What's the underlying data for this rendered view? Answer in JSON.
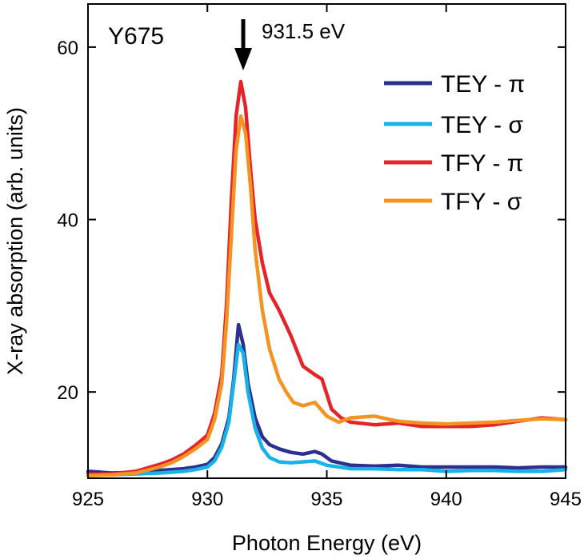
{
  "chart_data": {
    "type": "line",
    "xlabel": "Photon Energy (eV)",
    "ylabel": "X-ray absorption (arb. units)",
    "xlim": [
      925,
      945
    ],
    "ylim": [
      10,
      65
    ],
    "xticks": [
      925,
      930,
      935,
      940,
      945
    ],
    "yticks": [
      20,
      40,
      60
    ],
    "sample_label": "Y675",
    "annotation": {
      "text": "931.5 eV",
      "x": 931.5
    },
    "legend_position": "top-right",
    "series": [
      {
        "name": "TEY - π",
        "color": "#2b2f8f",
        "x": [
          925,
          926,
          927,
          928,
          929,
          929.5,
          930,
          930.3,
          930.6,
          930.9,
          931.1,
          931.3,
          931.5,
          931.7,
          932.0,
          932.3,
          932.6,
          933.0,
          933.5,
          934.0,
          934.5,
          934.8,
          935.2,
          936,
          937,
          938,
          939,
          940,
          941,
          942,
          943,
          944,
          945
        ],
        "y": [
          10.8,
          10.6,
          10.7,
          10.9,
          11.1,
          11.3,
          11.6,
          12.4,
          14.0,
          17.0,
          21.5,
          27.8,
          25.5,
          21.0,
          17.0,
          14.8,
          13.9,
          13.4,
          13.0,
          12.8,
          13.1,
          12.8,
          12.0,
          11.5,
          11.4,
          11.5,
          11.3,
          11.3,
          11.3,
          11.3,
          11.2,
          11.3,
          11.3
        ]
      },
      {
        "name": "TEY - σ",
        "color": "#17b2e8",
        "x": [
          925,
          926,
          927,
          928,
          929,
          929.5,
          930,
          930.3,
          930.6,
          930.9,
          931.1,
          931.3,
          931.5,
          931.7,
          932.0,
          932.3,
          932.6,
          933.0,
          933.5,
          934.0,
          934.5,
          935,
          936,
          937,
          938,
          939,
          940,
          941,
          942,
          943,
          944,
          945
        ],
        "y": [
          10.5,
          10.4,
          10.5,
          10.6,
          10.8,
          11.0,
          11.3,
          12.0,
          13.6,
          16.5,
          21.0,
          25.5,
          24.5,
          20.0,
          15.8,
          13.5,
          12.4,
          11.9,
          11.8,
          11.9,
          12.0,
          11.5,
          11.1,
          11.1,
          11.0,
          11.0,
          10.8,
          10.9,
          10.9,
          10.8,
          10.8,
          11.0
        ]
      },
      {
        "name": "TFY - π",
        "color": "#e5242a",
        "x": [
          925,
          926,
          927,
          928,
          928.5,
          929,
          929.5,
          930,
          930.3,
          930.6,
          930.8,
          931.0,
          931.2,
          931.4,
          931.6,
          931.8,
          932.0,
          932.3,
          932.6,
          933.0,
          933.5,
          934.0,
          934.5,
          934.8,
          935.2,
          935.6,
          936,
          937,
          938,
          939,
          940,
          941,
          942,
          943,
          944,
          945
        ],
        "y": [
          10.5,
          10.5,
          10.8,
          11.6,
          12.1,
          12.8,
          13.8,
          15.0,
          17.5,
          22.0,
          30.0,
          42.0,
          52.0,
          56.0,
          53.0,
          46.0,
          40.0,
          35.0,
          31.5,
          29.5,
          26.5,
          23.0,
          22.0,
          21.5,
          18.0,
          17.0,
          16.5,
          16.2,
          16.4,
          16.0,
          16.0,
          16.0,
          16.2,
          16.6,
          17.0,
          16.8
        ]
      },
      {
        "name": "TFY - σ",
        "color": "#f39422",
        "x": [
          925,
          926,
          927,
          928,
          928.5,
          929,
          929.5,
          930,
          930.3,
          930.6,
          930.8,
          931.0,
          931.2,
          931.4,
          931.6,
          931.8,
          932.0,
          932.3,
          932.6,
          933.0,
          933.3,
          933.6,
          934.0,
          934.5,
          935.0,
          935.5,
          936,
          937,
          938,
          939,
          940,
          941,
          942,
          943,
          944,
          945
        ],
        "y": [
          10.3,
          10.4,
          10.6,
          11.3,
          11.8,
          12.5,
          13.4,
          14.5,
          16.8,
          21.0,
          28.0,
          38.0,
          48.0,
          52.0,
          50.0,
          44.0,
          36.5,
          29.5,
          25.0,
          21.5,
          20.0,
          18.8,
          18.4,
          18.8,
          17.2,
          16.5,
          17.0,
          17.2,
          16.6,
          16.4,
          16.3,
          16.4,
          16.5,
          16.7,
          16.9,
          16.8
        ]
      }
    ]
  }
}
